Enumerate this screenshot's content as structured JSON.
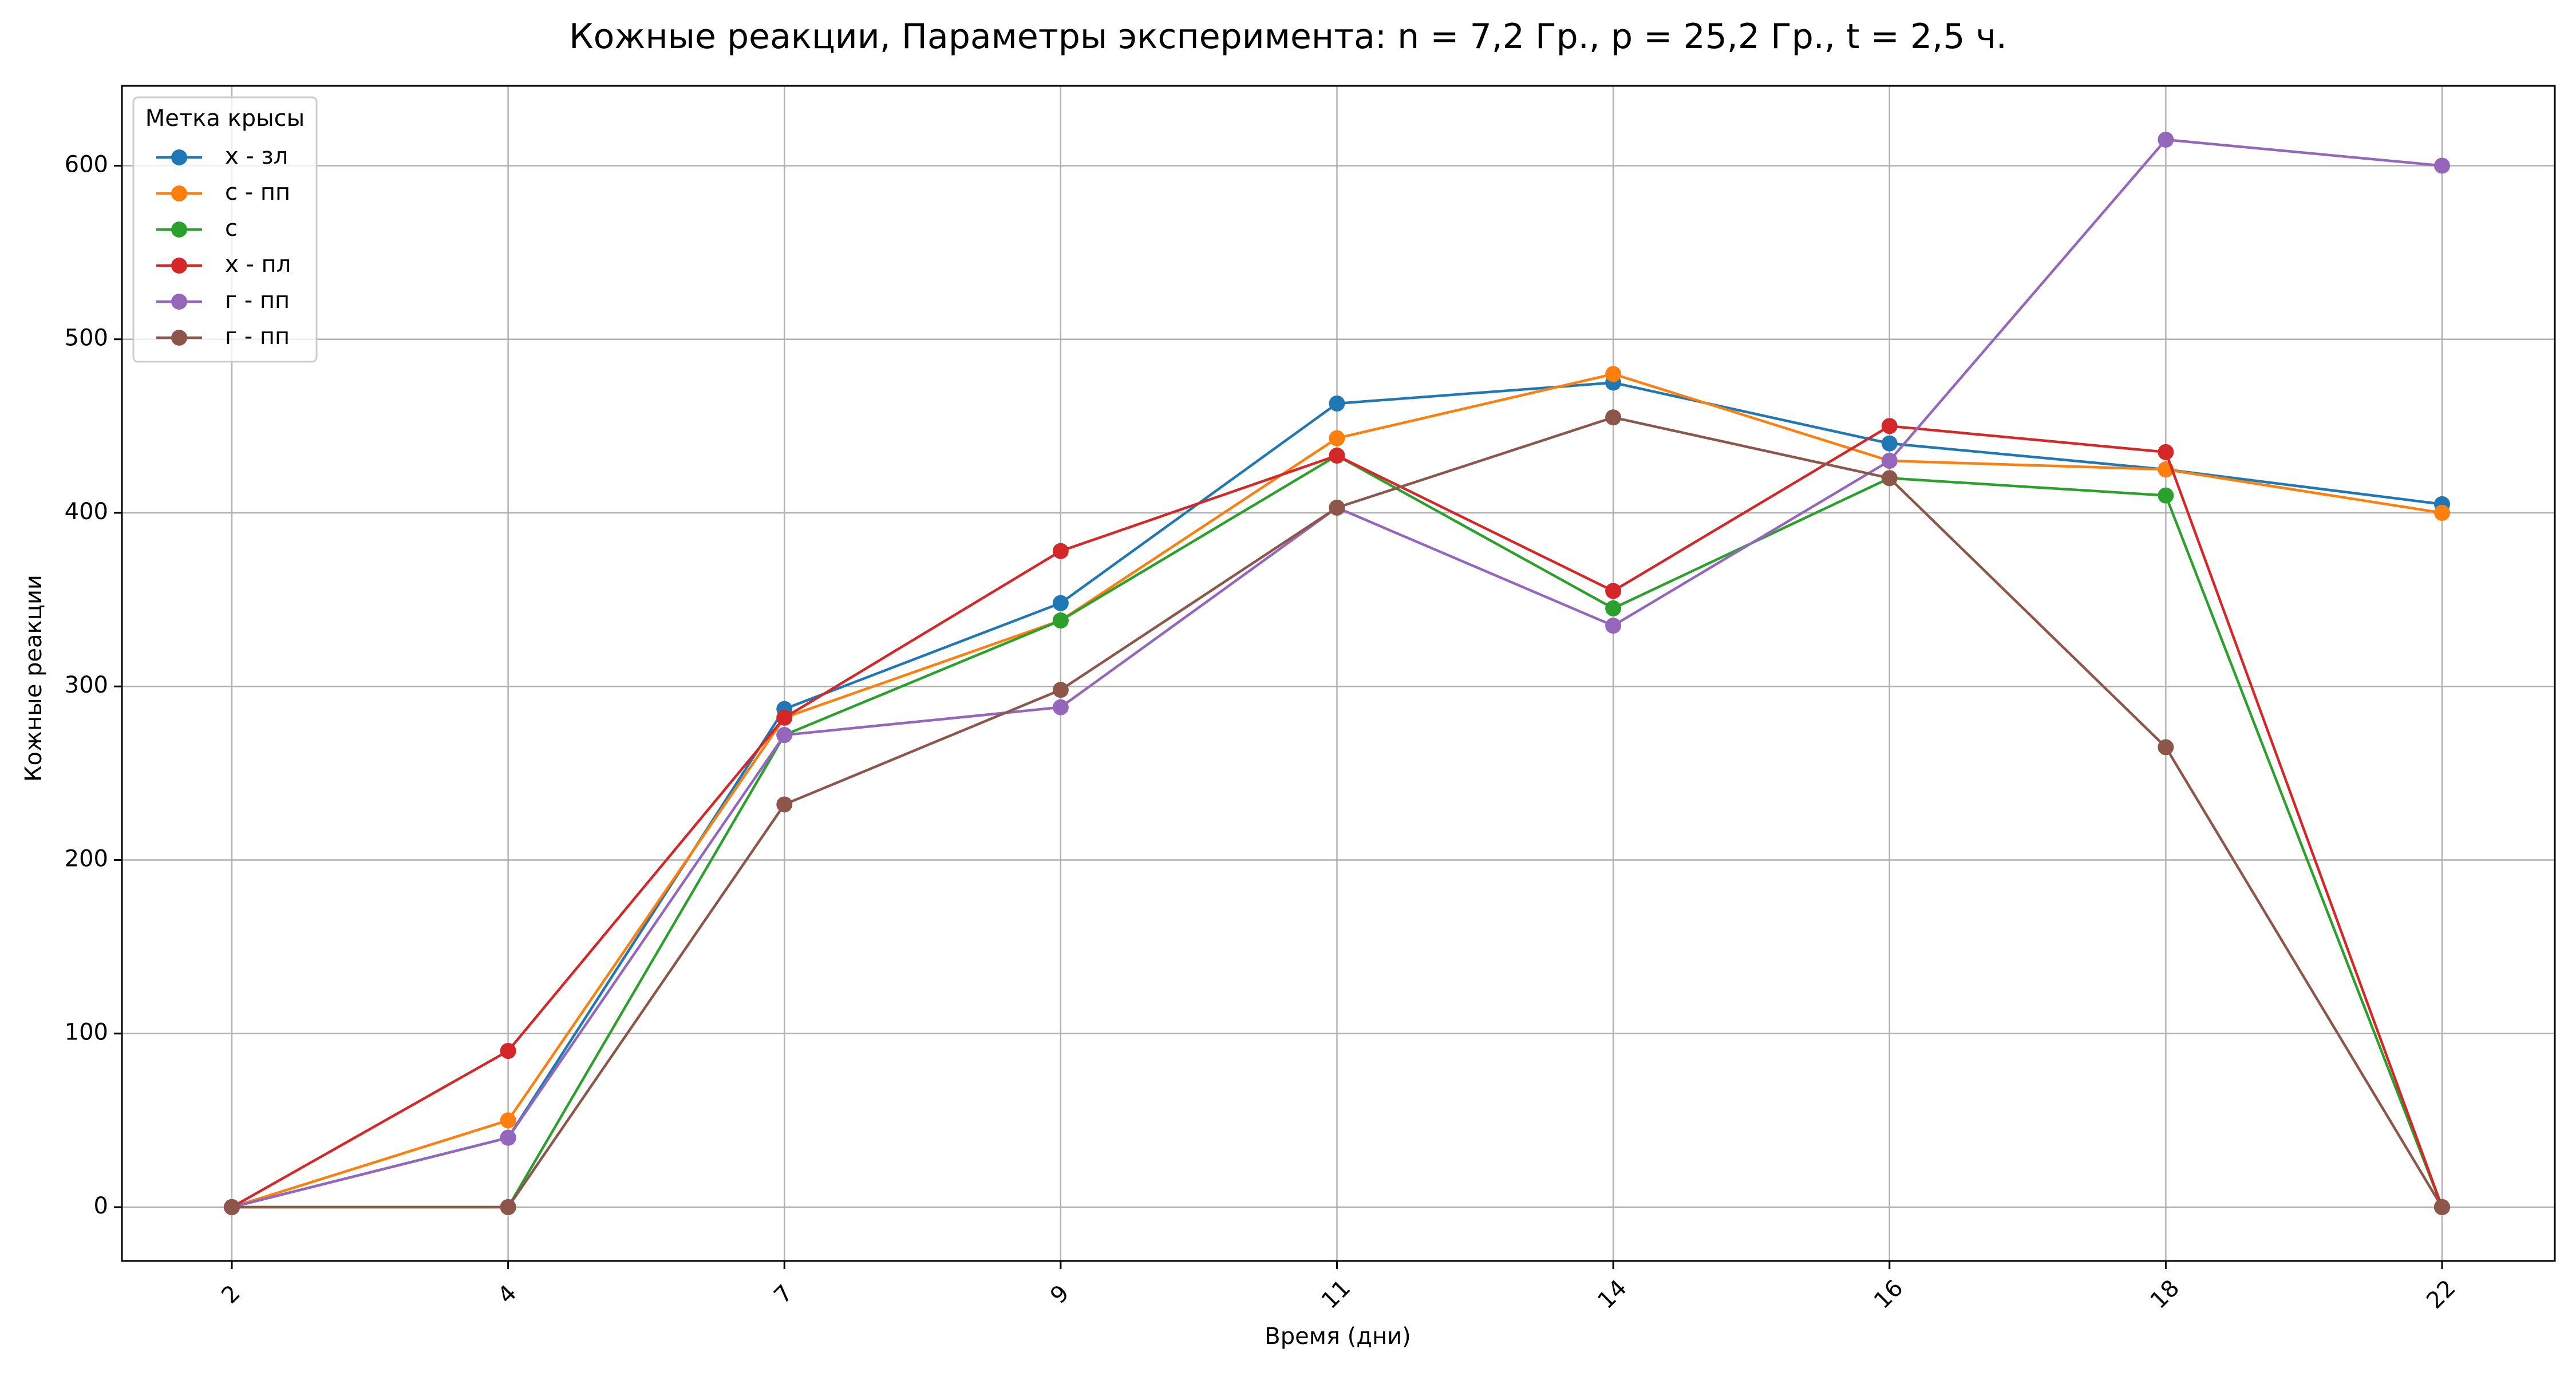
{
  "chart_data": {
    "type": "line",
    "title": "Кожные реакции, Параметры эксперимента: n = 7,2 Гр., p = 25,2 Гр., t = 2,5 ч.",
    "xlabel": "Время (дни)",
    "ylabel": "Кожные реакции",
    "categories": [
      "2",
      "4",
      "7",
      "9",
      "11",
      "14",
      "16",
      "18",
      "22"
    ],
    "yticks": [
      0,
      100,
      200,
      300,
      400,
      500,
      600
    ],
    "ylim": [
      -31,
      646
    ],
    "grid": true,
    "legend": {
      "title": "Метка крысы",
      "placement": "upper-left"
    },
    "series": [
      {
        "name": "х - зл",
        "color": "#1f77b4",
        "values": [
          0,
          40,
          287,
          348,
          463,
          475,
          440,
          425,
          405
        ]
      },
      {
        "name": "с - пп",
        "color": "#ff7f0e",
        "values": [
          0,
          50,
          282,
          338,
          443,
          480,
          430,
          425,
          400
        ]
      },
      {
        "name": "с",
        "color": "#2ca02c",
        "values": [
          0,
          0,
          272,
          338,
          433,
          345,
          420,
          410,
          0
        ]
      },
      {
        "name": "х - пл",
        "color": "#d62728",
        "values": [
          0,
          90,
          282,
          378,
          433,
          355,
          450,
          435,
          0
        ]
      },
      {
        "name": "г - пп",
        "color": "#9467bd",
        "values": [
          0,
          40,
          272,
          288,
          403,
          335,
          430,
          615,
          600
        ]
      },
      {
        "name": "г - пп",
        "color": "#8c564b",
        "values": [
          0,
          0,
          232,
          298,
          403,
          455,
          420,
          265,
          0
        ]
      }
    ]
  }
}
